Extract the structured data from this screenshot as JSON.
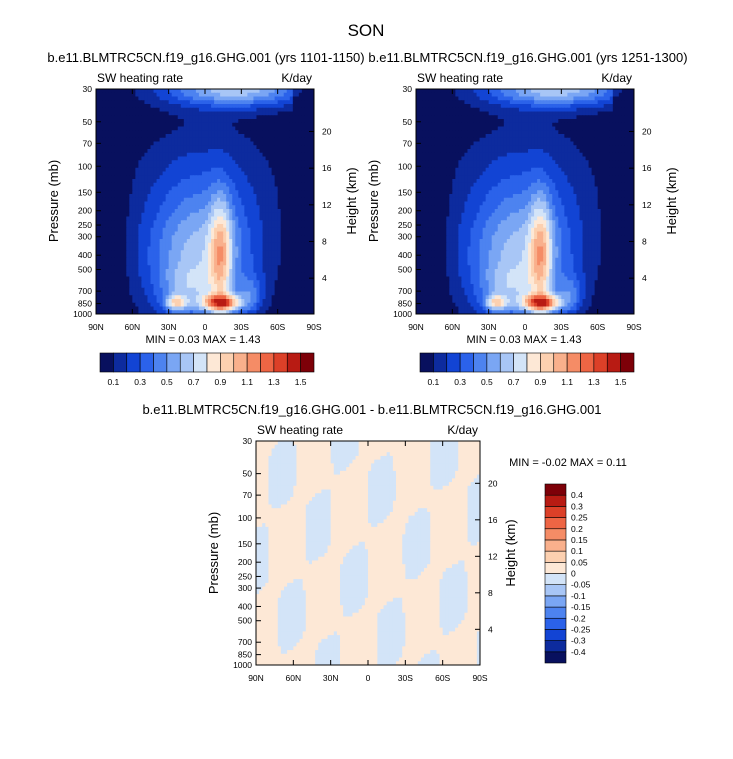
{
  "figure": {
    "title": "SON",
    "colors": {
      "abs_palette": [
        "#08105e",
        "#0d2b9e",
        "#1244d4",
        "#2b62ea",
        "#4d83f0",
        "#7aa6f4",
        "#a8c6f6",
        "#d3e4f8",
        "#fde8d6",
        "#fcd0b0",
        "#f9b08c",
        "#f58c66",
        "#ee6544",
        "#dc4028",
        "#b81b13",
        "#7d0008"
      ],
      "diff_palette": [
        "#08105e",
        "#0d2b9e",
        "#1244d4",
        "#2b62ea",
        "#4d83f0",
        "#7aa6f4",
        "#a8c6f6",
        "#d3e4f8",
        "#fde8d6",
        "#fcd0b0",
        "#f9b08c",
        "#f58c66",
        "#ee6544",
        "#dc4028",
        "#b81b13",
        "#7d0008"
      ]
    }
  },
  "chart_data": [
    {
      "type": "heatmap",
      "title": "b.e11.BLMTRC5CN.f19_g16.GHG.001 (yrs 1101-1150)",
      "left_label": "SW heating rate",
      "right_label": "K/day",
      "ylabel": "Pressure (mb)",
      "ylabel_right": "Height (km)",
      "x_ticks": [
        "90N",
        "60N",
        "30N",
        "0",
        "30S",
        "60S",
        "90S"
      ],
      "y_ticks": [
        "30",
        "50",
        "70",
        "100",
        "150",
        "200",
        "250",
        "300",
        "400",
        "500",
        "700",
        "850",
        "1000"
      ],
      "y_values": [
        30,
        50,
        70,
        100,
        150,
        200,
        250,
        300,
        400,
        500,
        700,
        850,
        1000
      ],
      "ylim": [
        1000,
        30
      ],
      "height_ticks": [
        "20",
        "16",
        "12",
        "8",
        "4"
      ],
      "height_values": [
        20,
        16,
        12,
        8,
        4
      ],
      "min_text": "MIN =  0.03   MAX =  1.43",
      "min": 0.03,
      "max": 1.43,
      "colorbar_labels": [
        "0.1",
        "0.3",
        "0.5",
        "0.7",
        "0.9",
        "1.1",
        "1.3",
        "1.5"
      ],
      "levels": [
        0.1,
        0.2,
        0.3,
        0.4,
        0.5,
        0.6,
        0.7,
        0.8,
        0.9,
        1.0,
        1.1,
        1.2,
        1.3,
        1.4,
        1.5
      ]
    },
    {
      "type": "heatmap",
      "title": "b.e11.BLMTRC5CN.f19_g16.GHG.001 (yrs 1251-1300)",
      "left_label": "SW heating rate",
      "right_label": "K/day",
      "ylabel": "Pressure (mb)",
      "ylabel_right": "Height (km)",
      "x_ticks": [
        "90N",
        "60N",
        "30N",
        "0",
        "30S",
        "60S",
        "90S"
      ],
      "y_ticks": [
        "30",
        "50",
        "70",
        "100",
        "150",
        "200",
        "250",
        "300",
        "400",
        "500",
        "700",
        "850",
        "1000"
      ],
      "y_values": [
        30,
        50,
        70,
        100,
        150,
        200,
        250,
        300,
        400,
        500,
        700,
        850,
        1000
      ],
      "ylim": [
        1000,
        30
      ],
      "height_ticks": [
        "20",
        "16",
        "12",
        "8",
        "4"
      ],
      "height_values": [
        20,
        16,
        12,
        8,
        4
      ],
      "min_text": "MIN =  0.03   MAX =  1.43",
      "min": 0.03,
      "max": 1.43,
      "colorbar_labels": [
        "0.1",
        "0.3",
        "0.5",
        "0.7",
        "0.9",
        "1.1",
        "1.3",
        "1.5"
      ],
      "levels": [
        0.1,
        0.2,
        0.3,
        0.4,
        0.5,
        0.6,
        0.7,
        0.8,
        0.9,
        1.0,
        1.1,
        1.2,
        1.3,
        1.4,
        1.5
      ]
    },
    {
      "type": "heatmap",
      "title": "b.e11.BLMTRC5CN.f19_g16.GHG.001 - b.e11.BLMTRC5CN.f19_g16.GHG.001",
      "left_label": "SW heating rate",
      "right_label": "K/day",
      "ylabel": "Pressure (mb)",
      "ylabel_right": "Height (km)",
      "x_ticks": [
        "90N",
        "60N",
        "30N",
        "0",
        "30S",
        "60S",
        "90S"
      ],
      "y_ticks": [
        "30",
        "50",
        "70",
        "100",
        "150",
        "200",
        "250",
        "300",
        "400",
        "500",
        "700",
        "850",
        "1000"
      ],
      "y_values": [
        30,
        50,
        70,
        100,
        150,
        200,
        250,
        300,
        400,
        500,
        700,
        850,
        1000
      ],
      "ylim": [
        1000,
        30
      ],
      "height_ticks": [
        "20",
        "16",
        "12",
        "8",
        "4"
      ],
      "height_values": [
        20,
        16,
        12,
        8,
        4
      ],
      "min_text": "MIN = -0.02   MAX =  0.11",
      "min": -0.02,
      "max": 0.11,
      "colorbar_labels": [
        "0.4",
        "0.3",
        "0.25",
        "0.2",
        "0.15",
        "0.1",
        "0.05",
        "0",
        "-0.05",
        "-0.1",
        "-0.15",
        "-0.2",
        "-0.25",
        "-0.3",
        "-0.4"
      ],
      "levels": [
        -0.4,
        -0.3,
        -0.25,
        -0.2,
        -0.15,
        -0.1,
        -0.05,
        0,
        0.05,
        0.1,
        0.15,
        0.2,
        0.25,
        0.3,
        0.4
      ]
    }
  ]
}
